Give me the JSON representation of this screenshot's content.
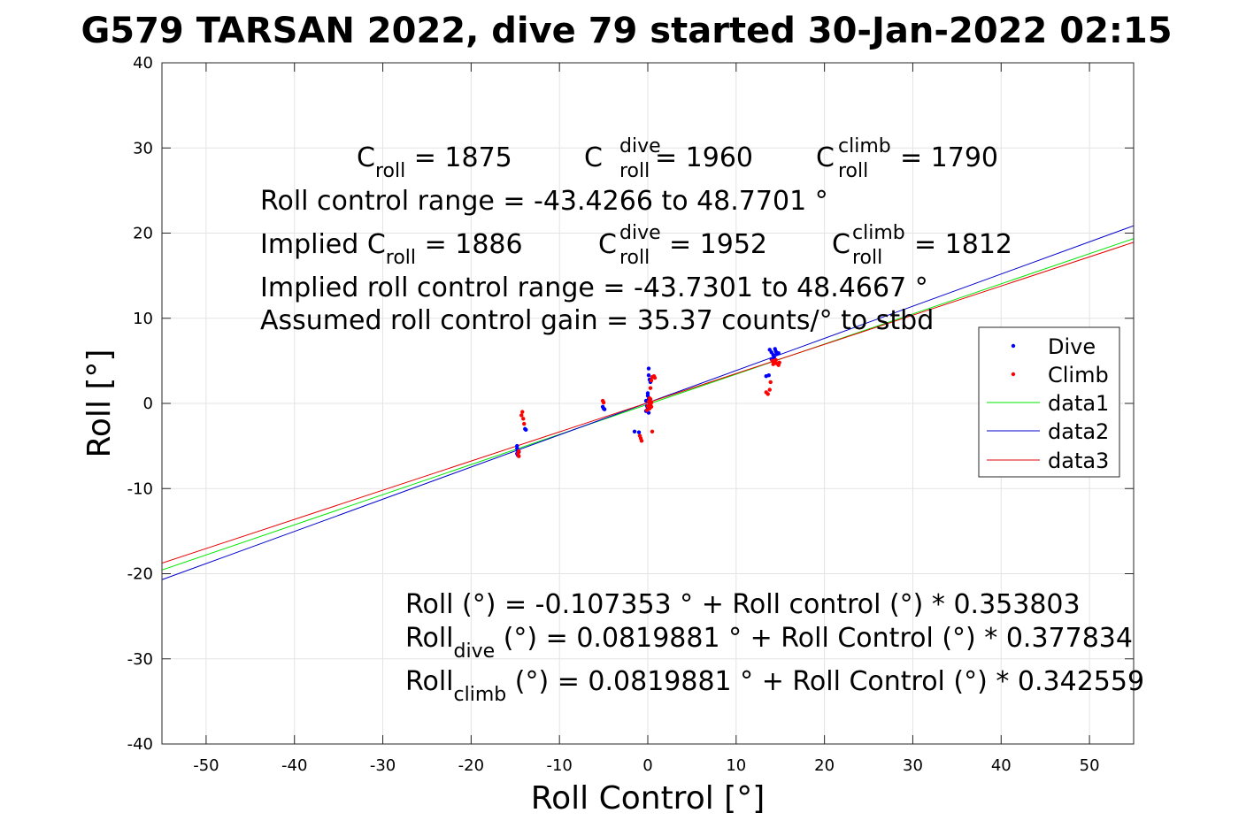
{
  "chart_data": {
    "type": "scatter",
    "title": "G579 TARSAN 2022, dive 79 started 30-Jan-2022 02:15",
    "xlabel": "Roll Control [°]",
    "ylabel": "Roll [°]",
    "xlim": [
      -55,
      55
    ],
    "ylim": [
      -40,
      40
    ],
    "xticks": [
      -50,
      -40,
      -30,
      -20,
      -10,
      0,
      10,
      20,
      30,
      40,
      50
    ],
    "yticks": [
      -40,
      -30,
      -20,
      -10,
      0,
      10,
      20,
      30,
      40
    ],
    "grid": true,
    "legend_position": "right",
    "legend": [
      "Dive",
      "Climb",
      "data1",
      "data2",
      "data3"
    ],
    "colors": {
      "dive": "#0000ff",
      "climb": "#ff0000",
      "data1": "#00e600",
      "data2": "#0000cc",
      "data3": "#e60000",
      "grid": "#e3e3e3"
    },
    "series": [
      {
        "name": "Dive",
        "kind": "points",
        "points": [
          [
            -14.8,
            -5.0
          ],
          [
            -14.8,
            -5.3
          ],
          [
            -14.7,
            -5.6
          ],
          [
            -14.8,
            -5.9
          ],
          [
            -14.7,
            -6.1
          ],
          [
            -14.6,
            -5.7
          ],
          [
            -13.9,
            -3.0
          ],
          [
            -13.8,
            -3.1
          ],
          [
            -5.1,
            -0.4
          ],
          [
            -5.0,
            -0.6
          ],
          [
            -4.9,
            -0.7
          ],
          [
            -1.5,
            -3.3
          ],
          [
            -1.0,
            -3.4
          ],
          [
            -0.2,
            0.3
          ],
          [
            0.0,
            0.9
          ],
          [
            0.1,
            0.5
          ],
          [
            0.2,
            -0.2
          ],
          [
            0.0,
            -0.5
          ],
          [
            -0.2,
            -0.9
          ],
          [
            0.1,
            -1.1
          ],
          [
            0.0,
            1.2
          ],
          [
            0.2,
            0.1
          ],
          [
            -0.1,
            -0.3
          ],
          [
            0.1,
            4.1
          ],
          [
            0.1,
            3.3
          ],
          [
            0.2,
            2.8
          ],
          [
            0.3,
            2.5
          ],
          [
            13.4,
            3.2
          ],
          [
            13.7,
            3.3
          ],
          [
            13.8,
            6.3
          ],
          [
            14.0,
            6.0
          ],
          [
            14.2,
            5.7
          ],
          [
            14.5,
            6.1
          ],
          [
            14.3,
            5.4
          ],
          [
            14.6,
            5.8
          ],
          [
            14.0,
            5.2
          ],
          [
            14.4,
            6.4
          ],
          [
            14.8,
            5.9
          ]
        ]
      },
      {
        "name": "Climb",
        "kind": "points",
        "points": [
          [
            -14.6,
            -5.6
          ],
          [
            -14.7,
            -5.9
          ],
          [
            -14.6,
            -6.2
          ],
          [
            -14.2,
            -1.0
          ],
          [
            -14.3,
            -1.4
          ],
          [
            -14.1,
            -1.8
          ],
          [
            -14.0,
            -2.4
          ],
          [
            -5.1,
            0.3
          ],
          [
            -5.0,
            0.1
          ],
          [
            -0.9,
            -3.8
          ],
          [
            -0.8,
            -4.1
          ],
          [
            -0.7,
            -4.4
          ],
          [
            0.1,
            0.2
          ],
          [
            0.2,
            0.6
          ],
          [
            0.3,
            -0.1
          ],
          [
            0.0,
            -0.3
          ],
          [
            0.2,
            -0.6
          ],
          [
            0.4,
            0.1
          ],
          [
            0.3,
            0.5
          ],
          [
            -0.1,
            -0.8
          ],
          [
            0.4,
            -0.4
          ],
          [
            0.3,
            1.8
          ],
          [
            0.5,
            3.1
          ],
          [
            0.7,
            3.2
          ],
          [
            0.8,
            3.0
          ],
          [
            0.4,
            2.7
          ],
          [
            0.5,
            -3.3
          ],
          [
            13.4,
            1.3
          ],
          [
            13.6,
            1.1
          ],
          [
            13.8,
            1.6
          ],
          [
            13.9,
            2.5
          ],
          [
            14.2,
            4.6
          ],
          [
            14.4,
            4.9
          ],
          [
            14.6,
            4.7
          ],
          [
            14.8,
            4.5
          ],
          [
            14.5,
            5.1
          ],
          [
            14.1,
            5.0
          ],
          [
            14.9,
            4.8
          ]
        ]
      },
      {
        "name": "data1",
        "kind": "line",
        "intercept": -0.107353,
        "slope": 0.353803
      },
      {
        "name": "data2",
        "kind": "line",
        "intercept": 0.0819881,
        "slope": 0.377834
      },
      {
        "name": "data3",
        "kind": "line",
        "intercept": 0.0819881,
        "slope": 0.342559
      }
    ],
    "annotations_top": {
      "line1": {
        "c_roll_base": "C",
        "c_roll_sub": "roll",
        "c_roll_val": " = 1875",
        "c_dive_base": "C",
        "c_dive_sup": "dive",
        "c_dive_sub": "roll",
        "c_dive_val": " = 1960",
        "c_climb_base": "C",
        "c_climb_sup": "climb",
        "c_climb_sub": "roll",
        "c_climb_val": " = 1790"
      },
      "line2": "Roll control range = -43.4266 to 48.7701 °",
      "line3": {
        "c_roll_base": "Implied C",
        "c_roll_sub": "roll",
        "c_roll_val": " = 1886",
        "c_dive_base": "C",
        "c_dive_sup": "dive",
        "c_dive_sub": "roll",
        "c_dive_val": " = 1952",
        "c_climb_base": "C",
        "c_climb_sup": "climb",
        "c_climb_sub": "roll",
        "c_climb_val": " = 1812"
      },
      "line4": "Implied roll control range = -43.7301 to 48.4667 °",
      "line5": "Assumed roll control gain = 35.37 counts/° to stbd"
    },
    "annotations_bottom": {
      "eq1": "Roll (°) = -0.107353 ° + Roll control (°) * 0.353803",
      "eq2_base": "Roll",
      "eq2_sub": "dive",
      "eq2_rest": " (°) = 0.0819881 ° + Roll Control (°) * 0.377834",
      "eq3_base": "Roll",
      "eq3_sub": "climb",
      "eq3_rest": " (°) = 0.0819881 ° + Roll Control (°) * 0.342559"
    }
  }
}
